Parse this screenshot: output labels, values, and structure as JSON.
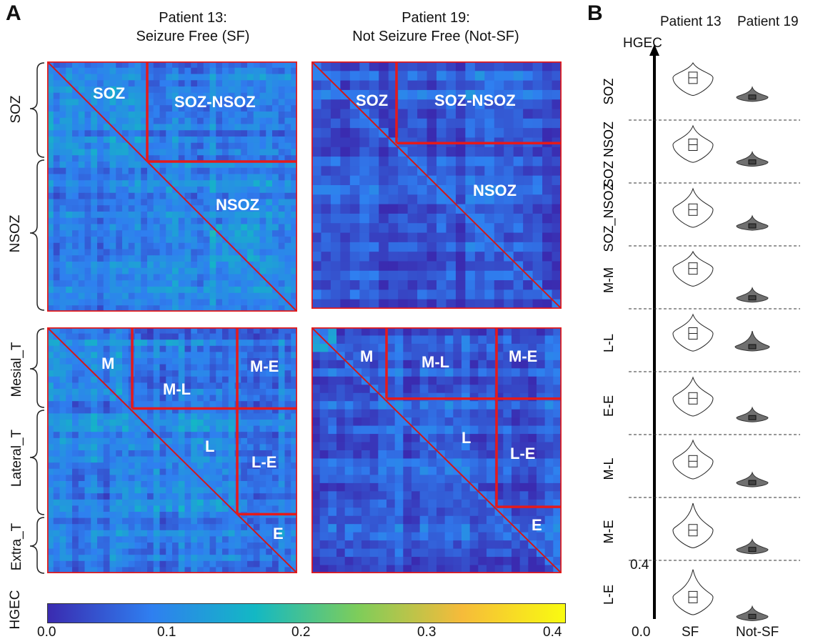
{
  "panel_a": {
    "letter": "A",
    "col1_title_line1": "Patient 13:",
    "col1_title_line2": "Seizure Free (SF)",
    "col2_title_line1": "Patient 19:",
    "col2_title_line2": "Not Seizure Free (Not-SF)",
    "top_left_labels": [
      "SOZ",
      "SOZ-NSOZ",
      "NSOZ"
    ],
    "top_right_labels": [
      "SOZ",
      "SOZ-NSOZ",
      "NSOZ"
    ],
    "bottom_left_labels": [
      "M",
      "M-L",
      "M-E",
      "L",
      "L-E",
      "E"
    ],
    "bottom_right_labels": [
      "M",
      "M-L",
      "M-E",
      "L",
      "L-E",
      "E"
    ],
    "row_labels_top": [
      "SOZ",
      "NSOZ"
    ],
    "row_labels_bottom": [
      "Mesial_T",
      "Lateral_T",
      "Extra_T"
    ],
    "colorbar_label": "HGEC",
    "colorbar_ticks": [
      "0.0",
      "0.1",
      "0.2",
      "0.3",
      "0.4"
    ],
    "colorbar_colors": [
      "#3a2bb0",
      "#2f7ff0",
      "#13b8c4",
      "#7ecd5a",
      "#f6bb3a",
      "#f9fb10"
    ]
  },
  "panel_b": {
    "letter": "B",
    "col_header_1": "Patient 13",
    "col_header_2": "Patient 19",
    "y_axis_label": "HGEC",
    "y_tick_top": "0.4",
    "y_tick_bottom": "0.0",
    "x_labels": [
      "SF",
      "Not-SF"
    ],
    "sf_color": "#ffffff",
    "notsf_color": "#707070"
  },
  "chart_data": [
    {
      "type": "heatmap",
      "colorbar": {
        "label": "HGEC",
        "range": [
          0.0,
          0.4
        ],
        "ticks": [
          0.0,
          0.1,
          0.2,
          0.3,
          0.4
        ]
      },
      "regions": [
        "SOZ",
        "NSOZ",
        "Mesial_T",
        "Lateral_T",
        "Extra_T"
      ]
    },
    {
      "type": "violin",
      "y_axis": {
        "label": "HGEC",
        "range": [
          0.0,
          0.4
        ]
      },
      "rows": [
        "SOZ",
        "SOZ NSOZ",
        "SOZ_NSOZ",
        "M-M",
        "L-L",
        "E-E",
        "M-L",
        "M-E",
        "L-E"
      ],
      "groups": [
        "SF",
        "Not-SF"
      ],
      "median_fraction_sf": [
        0.42,
        0.38,
        0.36,
        0.4,
        0.38,
        0.36,
        0.36,
        0.3,
        0.26
      ],
      "median_fraction_notsf": [
        0.2,
        0.18,
        0.17,
        0.08,
        0.22,
        0.14,
        0.12,
        0.08,
        0.04
      ]
    }
  ]
}
